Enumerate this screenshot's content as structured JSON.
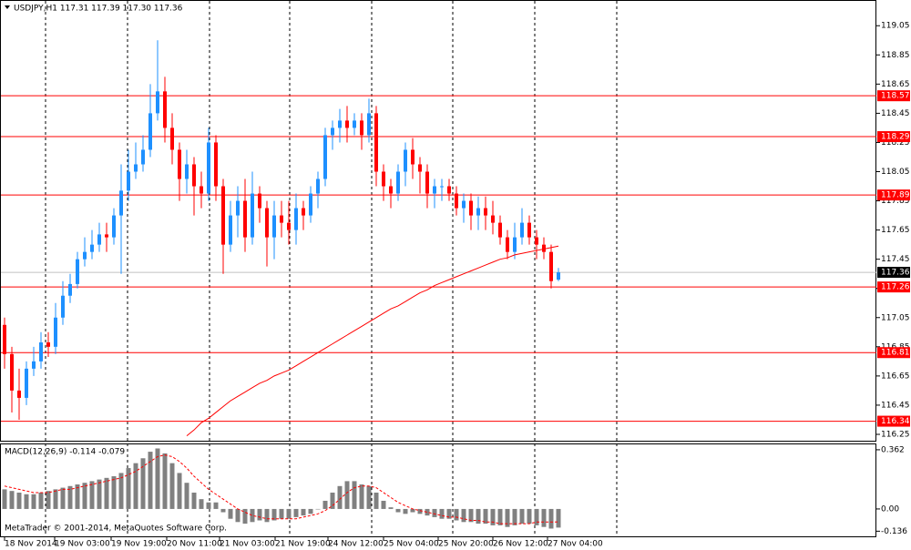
{
  "chart_data": [
    {
      "type": "candlestick",
      "title": "USDJPY,H1  117.31 117.39 117.30 117.36",
      "up_color": "#1e90ff",
      "down_color": "#ff0000",
      "open": [
        117.0,
        116.8,
        116.55,
        116.5,
        116.7,
        116.75,
        116.88,
        116.85,
        117.05,
        117.2,
        117.28,
        117.45,
        117.5,
        117.55,
        117.62,
        117.6,
        117.75,
        117.92,
        118.05,
        118.1,
        118.2,
        118.45,
        118.6,
        118.35,
        118.2,
        118.0,
        118.1,
        117.95,
        117.9,
        118.25,
        117.95,
        117.55,
        117.75,
        117.85,
        117.6,
        117.9,
        117.8,
        117.6,
        117.75,
        117.7,
        117.65,
        117.8,
        117.75,
        117.9,
        118.0,
        118.3,
        118.35,
        118.4,
        118.35,
        118.4,
        118.3,
        118.45,
        118.05,
        117.95,
        117.9,
        118.05,
        118.2,
        118.1,
        118.05,
        117.9,
        117.95,
        117.95,
        117.9,
        117.8,
        117.85,
        117.75,
        117.8,
        117.75,
        117.7,
        117.6,
        117.5,
        117.6,
        117.7,
        117.6,
        117.55,
        117.5,
        117.31
      ],
      "high": [
        117.05,
        116.85,
        116.7,
        116.75,
        116.85,
        116.95,
        116.95,
        117.15,
        117.3,
        117.35,
        117.5,
        117.6,
        117.65,
        117.7,
        117.7,
        117.8,
        118.1,
        118.2,
        118.25,
        118.3,
        118.65,
        118.95,
        118.7,
        118.45,
        118.25,
        118.2,
        118.15,
        118.05,
        118.35,
        118.3,
        118.0,
        117.85,
        117.95,
        118.0,
        118.05,
        117.95,
        117.85,
        117.85,
        117.85,
        117.85,
        117.9,
        117.85,
        117.95,
        118.05,
        118.35,
        118.4,
        118.48,
        118.5,
        118.45,
        118.45,
        118.55,
        118.5,
        118.1,
        118.0,
        118.1,
        118.25,
        118.28,
        118.15,
        118.1,
        118.0,
        118.0,
        118.0,
        117.95,
        117.9,
        117.9,
        117.88,
        117.88,
        117.85,
        117.75,
        117.65,
        117.7,
        117.8,
        117.75,
        117.65,
        117.6,
        117.55,
        117.39
      ],
      "low": [
        116.7,
        116.4,
        116.35,
        116.45,
        116.65,
        116.7,
        116.78,
        116.8,
        117.0,
        117.15,
        117.25,
        117.4,
        117.45,
        117.5,
        117.5,
        117.55,
        117.35,
        117.85,
        118.0,
        118.05,
        118.15,
        118.4,
        118.25,
        118.1,
        117.85,
        117.9,
        117.75,
        117.8,
        117.85,
        117.85,
        117.35,
        117.5,
        117.6,
        117.5,
        117.55,
        117.7,
        117.4,
        117.45,
        117.6,
        117.55,
        117.55,
        117.65,
        117.7,
        117.8,
        117.95,
        118.2,
        118.25,
        118.25,
        118.3,
        118.2,
        118.25,
        117.95,
        117.85,
        117.8,
        117.85,
        117.95,
        118.0,
        117.9,
        117.8,
        117.8,
        117.85,
        117.85,
        117.75,
        117.7,
        117.65,
        117.65,
        117.65,
        117.62,
        117.55,
        117.45,
        117.45,
        117.55,
        117.55,
        117.45,
        117.45,
        117.25,
        117.3
      ],
      "close": [
        116.8,
        116.55,
        116.5,
        116.7,
        116.75,
        116.88,
        116.85,
        117.05,
        117.2,
        117.28,
        117.45,
        117.5,
        117.55,
        117.62,
        117.6,
        117.75,
        117.92,
        118.05,
        118.1,
        118.2,
        118.45,
        118.6,
        118.35,
        118.2,
        118.0,
        118.1,
        117.95,
        117.9,
        118.25,
        117.95,
        117.55,
        117.75,
        117.85,
        117.6,
        117.9,
        117.8,
        117.6,
        117.75,
        117.7,
        117.65,
        117.8,
        117.75,
        117.9,
        118.0,
        118.3,
        118.35,
        118.4,
        118.35,
        118.4,
        118.3,
        118.45,
        118.05,
        117.95,
        117.9,
        118.05,
        118.2,
        118.1,
        118.05,
        117.9,
        117.95,
        117.95,
        117.9,
        117.8,
        117.85,
        117.75,
        117.8,
        117.75,
        117.7,
        117.6,
        117.5,
        117.6,
        117.7,
        117.6,
        117.55,
        117.5,
        117.3,
        117.36
      ],
      "moving_average": {
        "color": "#ff0000",
        "values": [
          null,
          null,
          null,
          null,
          null,
          null,
          null,
          null,
          null,
          null,
          null,
          null,
          null,
          null,
          null,
          null,
          null,
          null,
          null,
          null,
          null,
          null,
          null,
          null,
          null,
          116.24,
          116.28,
          116.33,
          116.36,
          116.4,
          116.44,
          116.48,
          116.51,
          116.54,
          116.57,
          116.6,
          116.62,
          116.65,
          116.67,
          116.69,
          116.72,
          116.75,
          116.78,
          116.81,
          116.84,
          116.87,
          116.9,
          116.93,
          116.96,
          116.99,
          117.02,
          117.05,
          117.08,
          117.11,
          117.13,
          117.16,
          117.19,
          117.22,
          117.24,
          117.27,
          117.29,
          117.31,
          117.33,
          117.35,
          117.37,
          117.39,
          117.41,
          117.43,
          117.45,
          117.46,
          117.48,
          117.49,
          117.5,
          117.51,
          117.52,
          117.53,
          117.54
        ]
      },
      "levels": [
        118.57,
        118.29,
        117.89,
        117.26,
        116.81,
        116.34
      ],
      "level_color": "#ff0000",
      "current_price": 117.36,
      "ylim": [
        116.2,
        119.22
      ],
      "yticks": [
        119.05,
        118.85,
        118.65,
        118.45,
        118.25,
        118.05,
        117.85,
        117.65,
        117.45,
        117.25,
        117.05,
        116.85,
        116.65,
        116.45,
        116.25
      ],
      "xlim": [
        0,
        119.6
      ],
      "xticks": [
        {
          "value": 0,
          "label": "18 Nov 2014"
        },
        {
          "value": 6.875,
          "label": "19 Nov 03:00"
        },
        {
          "value": 14.625,
          "label": "19 Nov 19:00"
        },
        {
          "value": 22.25,
          "label": "20 Nov 11:00"
        },
        {
          "value": 29.5,
          "label": "21 Nov 03:00"
        },
        {
          "value": 37.125,
          "label": "21 Nov 19:00"
        },
        {
          "value": 44.375,
          "label": "24 Nov 12:00"
        },
        {
          "value": 52,
          "label": "25 Nov 04:00"
        },
        {
          "value": 59.5,
          "label": "25 Nov 20:00"
        },
        {
          "value": 67,
          "label": "26 Nov 12:00"
        },
        {
          "value": 74.5,
          "label": "27 Nov 04:00"
        }
      ]
    },
    {
      "type": "macd",
      "title": "MACD(12,26,9) -0.114 -0.079",
      "histogram_color": "#808080",
      "signal_color": "#ff0000",
      "histogram": [
        0.12,
        0.11,
        0.1,
        0.09,
        0.09,
        0.1,
        0.11,
        0.12,
        0.13,
        0.14,
        0.15,
        0.16,
        0.17,
        0.18,
        0.19,
        0.2,
        0.22,
        0.25,
        0.28,
        0.31,
        0.35,
        0.37,
        0.34,
        0.28,
        0.22,
        0.16,
        0.1,
        0.06,
        0.04,
        0.04,
        -0.02,
        -0.06,
        -0.08,
        -0.09,
        -0.08,
        -0.07,
        -0.08,
        -0.07,
        -0.06,
        -0.06,
        -0.05,
        -0.04,
        -0.03,
        0.0,
        0.05,
        0.1,
        0.14,
        0.17,
        0.17,
        0.15,
        0.14,
        0.1,
        0.05,
        0.01,
        -0.02,
        -0.03,
        -0.02,
        -0.03,
        -0.04,
        -0.05,
        -0.06,
        -0.06,
        -0.07,
        -0.08,
        -0.08,
        -0.09,
        -0.09,
        -0.1,
        -0.1,
        -0.11,
        -0.1,
        -0.09,
        -0.09,
        -0.1,
        -0.11,
        -0.12,
        -0.114
      ],
      "signal": [
        0.14,
        0.13,
        0.12,
        0.11,
        0.1,
        0.1,
        0.1,
        0.11,
        0.12,
        0.12,
        0.13,
        0.14,
        0.15,
        0.16,
        0.17,
        0.18,
        0.19,
        0.21,
        0.23,
        0.26,
        0.29,
        0.32,
        0.33,
        0.32,
        0.29,
        0.25,
        0.2,
        0.16,
        0.12,
        0.09,
        0.06,
        0.03,
        0.0,
        -0.02,
        -0.04,
        -0.05,
        -0.06,
        -0.06,
        -0.06,
        -0.06,
        -0.06,
        -0.05,
        -0.04,
        -0.03,
        -0.01,
        0.02,
        0.06,
        0.1,
        0.13,
        0.14,
        0.14,
        0.13,
        0.1,
        0.07,
        0.04,
        0.02,
        0.0,
        -0.01,
        -0.02,
        -0.03,
        -0.04,
        -0.05,
        -0.05,
        -0.06,
        -0.07,
        -0.07,
        -0.08,
        -0.08,
        -0.09,
        -0.09,
        -0.09,
        -0.09,
        -0.09,
        -0.08,
        -0.08,
        -0.08,
        -0.079
      ],
      "ylim": [
        -0.173,
        0.395
      ],
      "yticks": [
        0.362,
        {
          "value": 0,
          "label": "0.00"
        },
        -0.136
      ]
    }
  ],
  "copyright": "MetaTrader © 2001-2014, MetaQuotes Software Corp."
}
